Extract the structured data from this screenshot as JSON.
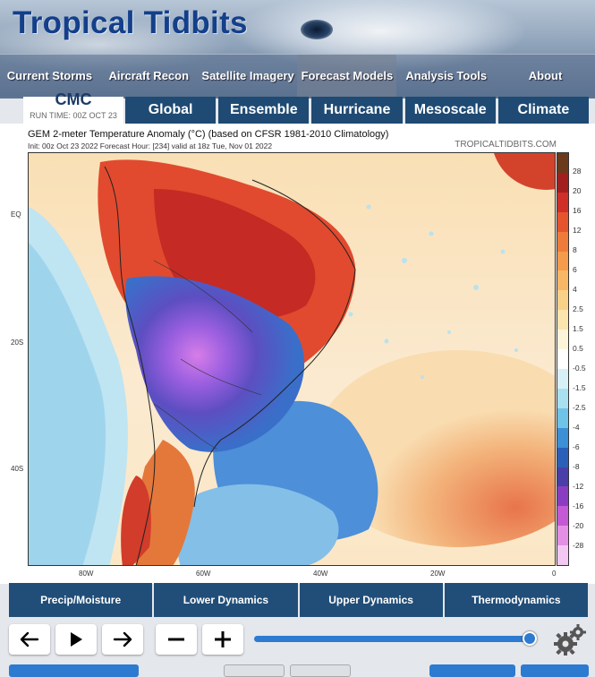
{
  "site": {
    "title": "Tropical Tidbits"
  },
  "nav": {
    "items": [
      {
        "label": "Current Storms"
      },
      {
        "label": "Aircraft Recon"
      },
      {
        "label": "Satellite Imagery"
      },
      {
        "label": "Forecast Models",
        "active": true
      },
      {
        "label": "Analysis Tools"
      },
      {
        "label": "About"
      }
    ]
  },
  "model": {
    "name": "CMC",
    "run_time": "RUN TIME: 00Z OCT 23"
  },
  "category_tabs": [
    {
      "label": "Global"
    },
    {
      "label": "Ensemble"
    },
    {
      "label": "Hurricane"
    },
    {
      "label": "Mesoscale"
    },
    {
      "label": "Climate"
    }
  ],
  "map": {
    "title": "GEM 2-meter Temperature Anomaly (°C) (based on CFSR 1981-2010 Climatology)",
    "subtitle": "Init: 00z Oct 23 2022   Forecast Hour: [234]   valid at 18z Tue, Nov 01 2022",
    "brand": "TROPICALTIDBITS.COM",
    "lat_labels": [
      "EQ",
      "20S",
      "40S"
    ],
    "lon_labels": [
      "80W",
      "60W",
      "40W",
      "20W",
      "0"
    ],
    "colorbar_labels": [
      "28",
      "20",
      "16",
      "12",
      "8",
      "6",
      "4",
      "2.5",
      "1.5",
      "0.5",
      "-0.5",
      "-1.5",
      "-2.5",
      "-4",
      "-6",
      "-8",
      "-12",
      "-16",
      "-20",
      "-28"
    ],
    "colorbar_colors": [
      "#6b3a1d",
      "#a31f1f",
      "#cf2f26",
      "#e6542d",
      "#ef7b3a",
      "#f49b4c",
      "#f7b766",
      "#f9d088",
      "#fbe4ad",
      "#fdf4d9",
      "#ffffff",
      "#d7f0f6",
      "#a9e0ef",
      "#6fc3e6",
      "#3d8fd6",
      "#2c5fb8",
      "#4a3ea8",
      "#8a3dc2",
      "#c45ad3",
      "#e48fe6",
      "#f2c7f2"
    ]
  },
  "bottom_tabs": [
    {
      "label": "Precip/Moisture"
    },
    {
      "label": "Lower Dynamics"
    },
    {
      "label": "Upper Dynamics"
    },
    {
      "label": "Thermodynamics"
    }
  ],
  "controls": {
    "prev_icon": "arrow-left-icon",
    "play_icon": "play-icon",
    "next_icon": "arrow-right-icon",
    "minus_icon": "minus-icon",
    "plus_icon": "plus-icon",
    "slider_fraction": 0.99,
    "gear_icon": "gear-icon"
  },
  "colors": {
    "nav_tab": "#1f4a73",
    "accent": "#2d7bd0",
    "logo": "#133f8b"
  }
}
